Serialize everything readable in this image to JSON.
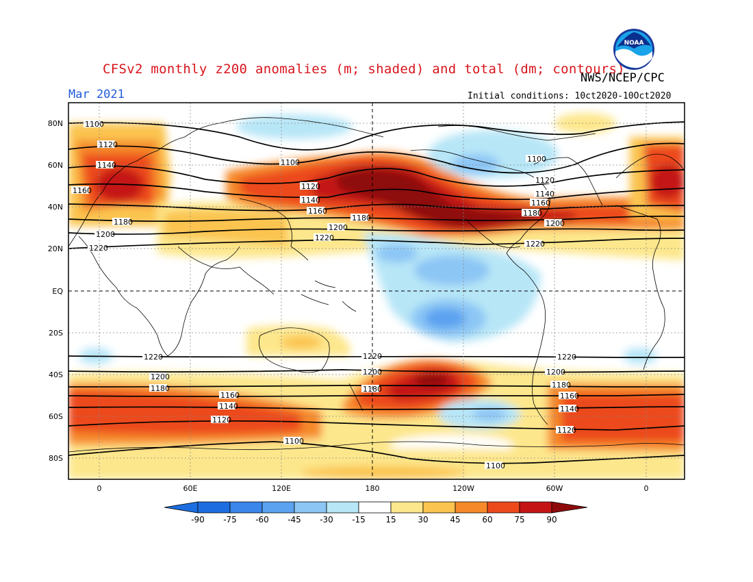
{
  "header": {
    "title": "CFSv2 monthly z200 anomalies (m; shaded) and total (dm; contours)",
    "agency": "NWS/NCEP/CPC",
    "date": "Mar 2021",
    "initial_conditions": "Initial conditions: 10ct2020-10Oct2020",
    "logo_text": "NOAA"
  },
  "axes": {
    "lat_ticks": [
      "80N",
      "60N",
      "40N",
      "20N",
      "EQ",
      "20S",
      "40S",
      "60S",
      "80S"
    ],
    "lon_ticks": [
      "0",
      "60E",
      "120E",
      "180",
      "120W",
      "60W",
      "0"
    ]
  },
  "colorbar": {
    "labels": [
      "-90",
      "-75",
      "-60",
      "-45",
      "-30",
      "-15",
      "15",
      "30",
      "45",
      "60",
      "75",
      "90"
    ],
    "colors": [
      "#1c6ee0",
      "#3a86ea",
      "#5ba2f0",
      "#8cc6f5",
      "#b7e6f7",
      "#ffffff",
      "#fde78c",
      "#fbc44f",
      "#f68a2a",
      "#ec4a1c",
      "#c41414",
      "#8e0a0a"
    ]
  },
  "contour_labels": {
    "nh": [
      "1100",
      "1120",
      "1140",
      "1160",
      "1180",
      "1200",
      "1220"
    ],
    "sh": [
      "1220",
      "1200",
      "1180",
      "1160",
      "1140",
      "1120",
      "1100"
    ]
  },
  "colors": {
    "title": "#d8141b",
    "date": "#1f5ad8",
    "land_outline": "#000000",
    "contour": "#000000"
  }
}
